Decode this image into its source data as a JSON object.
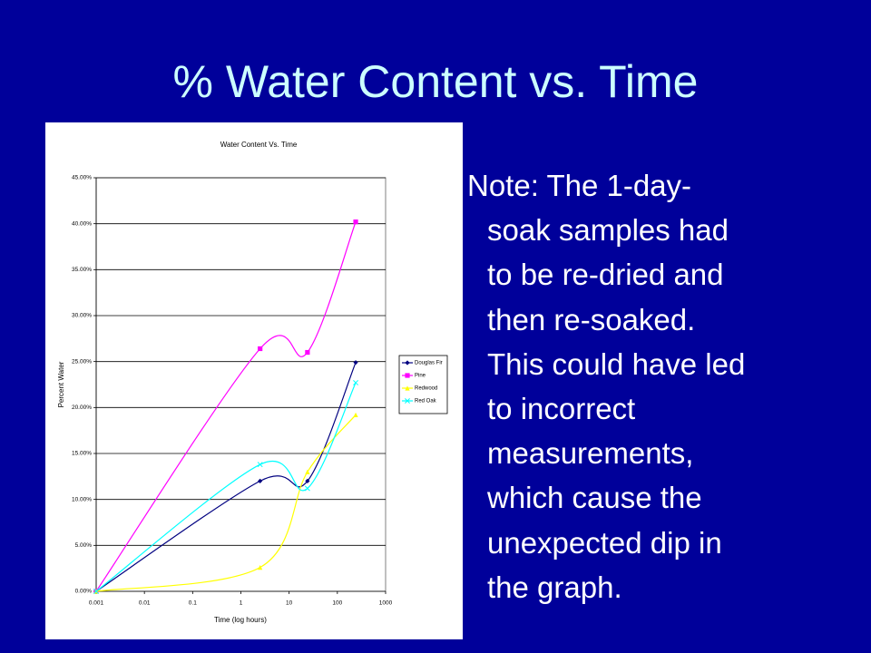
{
  "slide": {
    "title": "% Water Content vs. Time",
    "note_lines": [
      "Note:  The 1-day-",
      "soak samples had",
      "to be re-dried and",
      "then re-soaked.",
      "This could have led",
      "to incorrect",
      "measurements,",
      "which cause the",
      "unexpected dip in",
      "the graph."
    ]
  },
  "chart_data": {
    "type": "line",
    "title": "Water Content Vs. Time",
    "x_label": "Time (log hours)",
    "y_label": "Percent Water",
    "x": [
      0.001,
      2.5,
      24,
      240
    ],
    "xscale": "log",
    "xlim": [
      0.001,
      1000
    ],
    "xticks": [
      0.001,
      0.01,
      0.1,
      1,
      10,
      100,
      1000
    ],
    "ylim": [
      0,
      45
    ],
    "yticks": [
      {
        "value": 0,
        "label": "0.00%"
      },
      {
        "value": 5,
        "label": "5.00%"
      },
      {
        "value": 10,
        "label": "10.00%"
      },
      {
        "value": 15,
        "label": "15.00%"
      },
      {
        "value": 20,
        "label": "20.00%"
      },
      {
        "value": 25,
        "label": "25.00%"
      },
      {
        "value": 30,
        "label": "30.00%"
      },
      {
        "value": 35,
        "label": "35.00%"
      },
      {
        "value": 40,
        "label": "40.00%"
      },
      {
        "value": 45,
        "label": "45.00%"
      }
    ],
    "grid": true,
    "legend": "right",
    "smooth": true,
    "series": [
      {
        "name": "Douglas Fir",
        "color": "#000080",
        "values": [
          0,
          12.0,
          12.0,
          24.9
        ]
      },
      {
        "name": "Pine",
        "color": "#ff00ff",
        "values": [
          0,
          26.4,
          26.0,
          40.2
        ]
      },
      {
        "name": "Redwood",
        "color": "#ffff00",
        "values": [
          0,
          2.6,
          13.0,
          19.2
        ]
      },
      {
        "name": "Red Oak",
        "color": "#00ffff",
        "values": [
          0,
          13.8,
          11.2,
          22.7
        ]
      }
    ]
  }
}
